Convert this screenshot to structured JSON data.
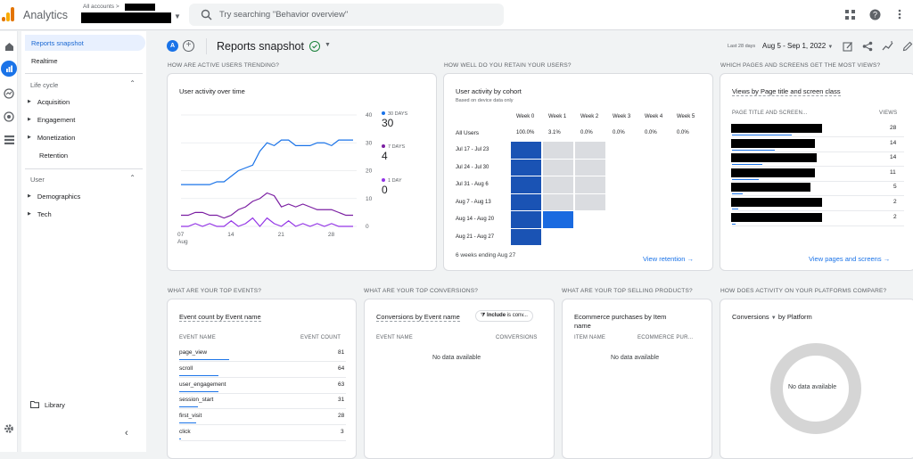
{
  "app": {
    "title": "Analytics",
    "account_label": "All accounts >"
  },
  "search": {
    "placeholder": "Try searching \"Behavior overview\""
  },
  "sidebar": {
    "reports_snapshot": "Reports snapshot",
    "realtime": "Realtime",
    "lifecycle_label": "Life cycle",
    "lifecycle_items": [
      "Acquisition",
      "Engagement",
      "Monetization"
    ],
    "retention": "Retention",
    "user_label": "User",
    "user_items": [
      "Demographics",
      "Tech"
    ],
    "library": "Library"
  },
  "header": {
    "avatar_letter": "A",
    "title": "Reports snapshot",
    "date_label": "Last 28 days",
    "date_range": "Aug 5 - Sep 1, 2022"
  },
  "sections": {
    "active_users": "HOW ARE ACTIVE USERS TRENDING?",
    "retention": "HOW WELL DO YOU RETAIN YOUR USERS?",
    "pages": "WHICH PAGES AND SCREENS GET THE MOST VIEWS?",
    "events": "WHAT ARE YOUR TOP EVENTS?",
    "conversions": "WHAT ARE YOUR TOP CONVERSIONS?",
    "products": "WHAT ARE YOUR TOP SELLING PRODUCTS?",
    "platforms": "HOW DOES ACTIVITY ON YOUR PLATFORMS COMPARE?"
  },
  "activity": {
    "title": "User activity over time",
    "legend": [
      {
        "label": "30 DAYS",
        "value": "30",
        "color": "#1a73e8"
      },
      {
        "label": "7 DAYS",
        "value": "4",
        "color": "#7b1fa2"
      },
      {
        "label": "1 DAY",
        "value": "0",
        "color": "#9334e6"
      }
    ]
  },
  "chart_data": {
    "type": "line",
    "x": [
      7,
      8,
      9,
      10,
      11,
      12,
      13,
      14,
      15,
      16,
      17,
      18,
      19,
      20,
      21,
      22,
      23,
      24,
      25,
      26,
      27,
      28,
      29,
      30,
      31
    ],
    "x_ticks": [
      "07",
      "14",
      "21",
      "28"
    ],
    "x_tick_values": [
      7,
      14,
      21,
      28
    ],
    "x_sub": "Aug",
    "y_ticks": [
      "40",
      "30",
      "20",
      "10",
      "0"
    ],
    "ylim": [
      0,
      40
    ],
    "series": [
      {
        "name": "30 DAYS",
        "color": "#1a73e8",
        "values": [
          15,
          15,
          15,
          15,
          15,
          16,
          16,
          18,
          20,
          21,
          22,
          27,
          30,
          29,
          31,
          31,
          29,
          29,
          29,
          30,
          30,
          29,
          31,
          31,
          31
        ]
      },
      {
        "name": "7 DAYS",
        "color": "#7b1fa2",
        "values": [
          4,
          4,
          5,
          5,
          4,
          4,
          3,
          4,
          6,
          7,
          9,
          10,
          12,
          11,
          7,
          8,
          7,
          8,
          7,
          6,
          6,
          6,
          5,
          4,
          4
        ]
      },
      {
        "name": "1 DAY",
        "color": "#9334e6",
        "values": [
          0,
          0,
          1,
          0,
          1,
          0,
          0,
          2,
          0,
          1,
          3,
          0,
          3,
          1,
          0,
          2,
          0,
          1,
          0,
          1,
          0,
          1,
          0,
          0,
          0
        ]
      }
    ]
  },
  "cohort": {
    "title": "User activity by cohort",
    "subtitle": "Based on device data only",
    "weeks": [
      "Week 0",
      "Week 1",
      "Week 2",
      "Week 3",
      "Week 4",
      "Week 5"
    ],
    "all_users": {
      "label": "All Users",
      "values": [
        "100.0%",
        "3.1%",
        "0.0%",
        "0.0%",
        "0.0%",
        "0.0%"
      ]
    },
    "rows": [
      "Jul 17 - Jul 23",
      "Jul 24 - Jul 30",
      "Jul 31 - Aug 6",
      "Aug 7 - Aug 13",
      "Aug 14 - Aug 20",
      "Aug 21 - Aug 27"
    ],
    "footer": "6 weeks ending Aug 27",
    "link": "View retention"
  },
  "pages": {
    "title": "Views by Page title and screen class",
    "col_title": "PAGE TITLE AND SCREEN...",
    "col_views": "VIEWS",
    "views": [
      "28",
      "14",
      "14",
      "11",
      "5",
      "2",
      "2"
    ],
    "link": "View pages and screens"
  },
  "events": {
    "title": "Event count by Event name",
    "col_name": "EVENT NAME",
    "col_count": "EVENT COUNT",
    "rows": [
      {
        "name": "page_view",
        "count": "81"
      },
      {
        "name": "scroll",
        "count": "64"
      },
      {
        "name": "user_engagement",
        "count": "63"
      },
      {
        "name": "session_start",
        "count": "31"
      },
      {
        "name": "first_visit",
        "count": "28"
      },
      {
        "name": "click",
        "count": "3"
      }
    ]
  },
  "conversions": {
    "title": "Conversions by Event name",
    "filter_strong": "Include",
    "filter_rest": "is conv...",
    "col_name": "EVENT NAME",
    "col_conv": "CONVERSIONS",
    "empty": "No data available"
  },
  "products": {
    "title": "Ecommerce purchases by Item name",
    "col_name": "ITEM NAME",
    "col_purch": "ECOMMERCE PUR...",
    "empty": "No data available"
  },
  "platforms": {
    "title_metric": "Conversions",
    "title_rest": "by Platform",
    "empty": "No data available"
  }
}
